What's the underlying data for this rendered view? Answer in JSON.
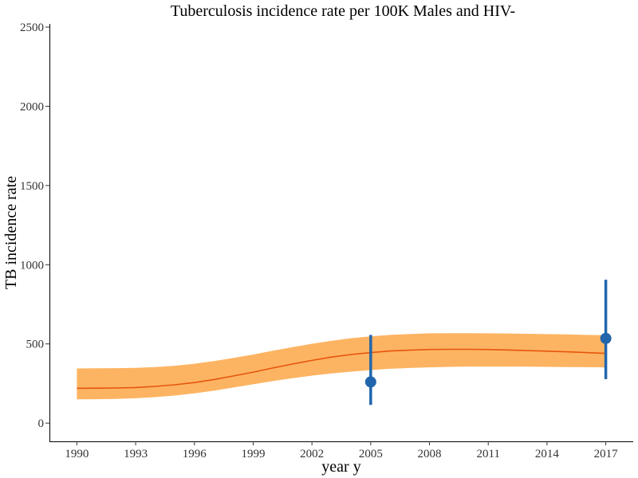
{
  "chart_data": {
    "type": "line",
    "title": "Tuberculosis incidence rate per 100K Males and HIV-",
    "xlabel": "year y",
    "ylabel": "TB incidence rate",
    "xlim": [
      1988.6,
      2018.4
    ],
    "ylim": [
      -115,
      2520
    ],
    "xticks": [
      1990,
      1993,
      1996,
      1999,
      2002,
      2005,
      2008,
      2011,
      2014,
      2017
    ],
    "yticks": [
      0,
      500,
      1000,
      1500,
      2000,
      2500
    ],
    "grid": false,
    "legend": "none",
    "colors": {
      "band": "#fdb462",
      "line": "#e6550d",
      "points": "#2166ac"
    },
    "series": [
      {
        "kind": "line",
        "x": [
          1990,
          1991,
          1992,
          1993,
          1994,
          1995,
          1996,
          1997,
          1998,
          1999,
          2000,
          2001,
          2002,
          2003,
          2004,
          2005,
          2006,
          2007,
          2008,
          2009,
          2010,
          2011,
          2012,
          2013,
          2014,
          2015,
          2016,
          2017
        ],
        "y": [
          220,
          221,
          222,
          225,
          232,
          242,
          256,
          275,
          298,
          322,
          348,
          373,
          396,
          417,
          433,
          445,
          455,
          461,
          465,
          466,
          466,
          465,
          462,
          458,
          454,
          450,
          445,
          440
        ]
      },
      {
        "kind": "band",
        "x": [
          1990,
          1991,
          1992,
          1993,
          1994,
          1995,
          1996,
          1997,
          1998,
          1999,
          2000,
          2001,
          2002,
          2003,
          2004,
          2005,
          2006,
          2007,
          2008,
          2009,
          2010,
          2011,
          2012,
          2013,
          2014,
          2015,
          2016,
          2017
        ],
        "lower": [
          150,
          151,
          153,
          157,
          164,
          174,
          188,
          205,
          225,
          245,
          265,
          284,
          300,
          314,
          325,
          335,
          343,
          348,
          352,
          355,
          357,
          357,
          357,
          356,
          355,
          354,
          353,
          352
        ],
        "upper": [
          345,
          346,
          347,
          349,
          354,
          362,
          375,
          392,
          412,
          433,
          457,
          480,
          501,
          520,
          536,
          548,
          557,
          563,
          567,
          568,
          568,
          567,
          566,
          564,
          562,
          560,
          557,
          555
        ]
      },
      {
        "kind": "points",
        "x": [
          2005,
          2017
        ],
        "y": [
          260,
          535
        ],
        "lower": [
          115,
          278
        ],
        "upper": [
          557,
          905
        ]
      }
    ]
  }
}
